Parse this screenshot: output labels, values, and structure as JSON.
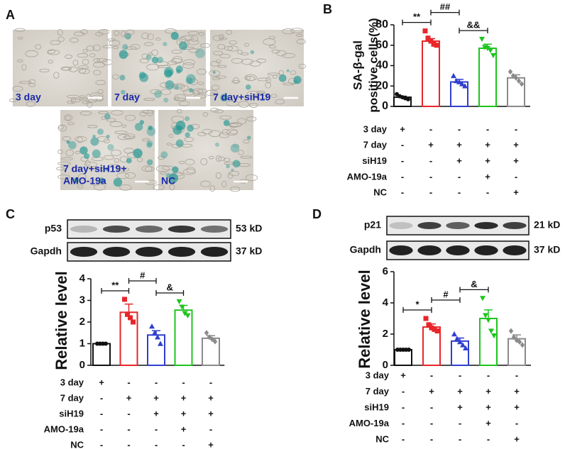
{
  "panel_labels": [
    "A",
    "B",
    "C",
    "D"
  ],
  "images": {
    "labels": [
      [
        "3 day"
      ],
      [
        "7 day"
      ],
      [
        "7 day+siH19"
      ],
      [
        "7 day+siH19+",
        "AMO-19a"
      ],
      [
        "NC"
      ]
    ]
  },
  "blots": [
    {
      "labels": [
        "p53",
        "Gapdh"
      ],
      "sizes": [
        "53 kD",
        "37 kD"
      ]
    },
    {
      "labels": [
        "p21",
        "Gapdh"
      ],
      "sizes": [
        "21 kD",
        "37 kD"
      ]
    }
  ],
  "chart_data": [
    {
      "type": "bar",
      "ylabel": [
        "SA-β-gal",
        "positive cells(%)"
      ],
      "ylim": [
        0,
        80
      ],
      "yticks": [
        0,
        20,
        40,
        60,
        80
      ],
      "colors": [
        "#111111",
        "#e8262a",
        "#2f3fcf",
        "#1ec41e",
        "#8a8a8a"
      ],
      "markers": [
        "circle",
        "square",
        "triangle",
        "triangle-down",
        "diamond"
      ],
      "values": [
        9,
        64,
        24,
        57,
        28
      ],
      "errors": [
        1,
        2.5,
        2.5,
        4,
        3
      ],
      "points": [
        [
          12,
          10,
          9,
          8,
          7
        ],
        [
          74,
          67,
          64,
          61,
          60
        ],
        [
          30,
          25,
          24,
          22,
          20
        ],
        [
          66,
          58,
          57,
          55,
          50
        ],
        [
          34,
          30,
          28,
          25,
          22
        ]
      ],
      "comparisons": [
        {
          "label": "**",
          "bars": [
            0,
            1
          ]
        },
        {
          "label": "##",
          "bars": [
            1,
            2
          ]
        },
        {
          "label": "&&",
          "bars": [
            2,
            3
          ]
        }
      ],
      "conditions": [
        {
          "name": "3 day",
          "signs": [
            "+",
            "-",
            "-",
            "-",
            "-"
          ]
        },
        {
          "name": "7 day",
          "signs": [
            "-",
            "+",
            "+",
            "+",
            "+"
          ]
        },
        {
          "name": "siH19",
          "signs": [
            "-",
            "-",
            "+",
            "+",
            "+"
          ]
        },
        {
          "name": "AMO-19a",
          "signs": [
            "-",
            "-",
            "-",
            "+",
            "-"
          ]
        },
        {
          "name": "NC",
          "signs": [
            "-",
            "-",
            "-",
            "-",
            "+"
          ]
        }
      ]
    },
    {
      "type": "bar",
      "ylabel": [
        "Relative level"
      ],
      "ylim": [
        0,
        4
      ],
      "yticks": [
        0,
        1,
        2,
        3,
        4
      ],
      "colors": [
        "#111111",
        "#e8262a",
        "#2f3fcf",
        "#1ec41e",
        "#8a8a8a"
      ],
      "markers": [
        "circle",
        "square",
        "triangle",
        "triangle-down",
        "diamond"
      ],
      "values": [
        1.0,
        2.45,
        1.4,
        2.55,
        1.25
      ],
      "errors": [
        0,
        0.38,
        0.2,
        0.22,
        0.12
      ],
      "points": [
        [
          1,
          1,
          1,
          1
        ],
        [
          3.05,
          2.35,
          2.2,
          2.0
        ],
        [
          1.8,
          1.5,
          1.3,
          1.0
        ],
        [
          2.95,
          2.7,
          2.4,
          2.3
        ],
        [
          1.5,
          1.3,
          1.2,
          1.1
        ]
      ],
      "comparisons": [
        {
          "label": "**",
          "bars": [
            0,
            1
          ]
        },
        {
          "label": "#",
          "bars": [
            1,
            2
          ]
        },
        {
          "label": "&",
          "bars": [
            2,
            3
          ]
        }
      ],
      "conditions": [
        {
          "name": "3 day",
          "signs": [
            "+",
            "-",
            "-",
            "-",
            "-"
          ]
        },
        {
          "name": "7 day",
          "signs": [
            "-",
            "+",
            "+",
            "+",
            "+"
          ]
        },
        {
          "name": "siH19",
          "signs": [
            "-",
            "-",
            "+",
            "+",
            "+"
          ]
        },
        {
          "name": "AMO-19a",
          "signs": [
            "-",
            "-",
            "-",
            "+",
            "-"
          ]
        },
        {
          "name": "NC",
          "signs": [
            "-",
            "-",
            "-",
            "-",
            "+"
          ]
        }
      ]
    },
    {
      "type": "bar",
      "ylabel": [
        "Relative level"
      ],
      "ylim": [
        0,
        6
      ],
      "yticks": [
        0,
        2,
        4,
        6
      ],
      "colors": [
        "#111111",
        "#e8262a",
        "#2f3fcf",
        "#1ec41e",
        "#8a8a8a"
      ],
      "markers": [
        "circle",
        "square",
        "triangle",
        "triangle-down",
        "diamond"
      ],
      "values": [
        1.0,
        2.45,
        1.55,
        3.0,
        1.7
      ],
      "errors": [
        0,
        0.2,
        0.2,
        0.55,
        0.25
      ],
      "points": [
        [
          1,
          1,
          1,
          1,
          1
        ],
        [
          3.0,
          2.6,
          2.4,
          2.3,
          2.2
        ],
        [
          2.0,
          1.7,
          1.5,
          1.3,
          1.1
        ],
        [
          4.3,
          3.2,
          2.9,
          2.2,
          1.9
        ],
        [
          2.2,
          1.8,
          1.6,
          1.5,
          1.3
        ]
      ],
      "comparisons": [
        {
          "label": "*",
          "bars": [
            0,
            1
          ]
        },
        {
          "label": "#",
          "bars": [
            1,
            2
          ]
        },
        {
          "label": "&",
          "bars": [
            2,
            3
          ]
        }
      ],
      "conditions": [
        {
          "name": "3 day",
          "signs": [
            "+",
            "-",
            "-",
            "-",
            "-"
          ]
        },
        {
          "name": "7 day",
          "signs": [
            "-",
            "+",
            "+",
            "+",
            "+"
          ]
        },
        {
          "name": "siH19",
          "signs": [
            "-",
            "-",
            "+",
            "+",
            "+"
          ]
        },
        {
          "name": "AMO-19a",
          "signs": [
            "-",
            "-",
            "-",
            "+",
            "-"
          ]
        },
        {
          "name": "NC",
          "signs": [
            "-",
            "-",
            "-",
            "-",
            "+"
          ]
        }
      ]
    }
  ]
}
